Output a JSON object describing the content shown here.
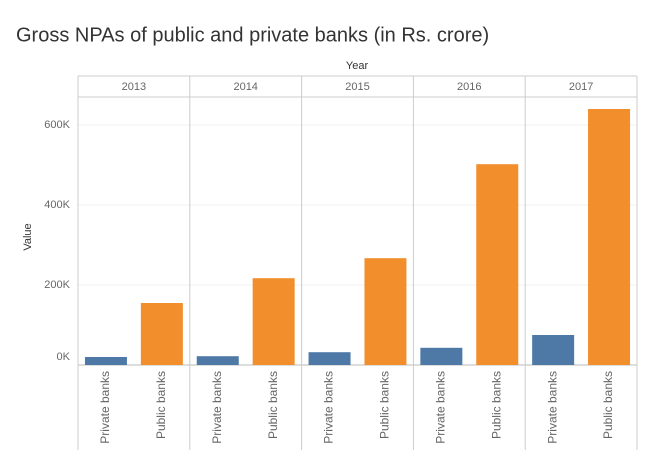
{
  "chart_data": {
    "type": "bar",
    "title": "Gross NPAs of public and private banks (in Rs. crore)",
    "column_header": "Year",
    "y_label": "Value",
    "columns": [
      "2013",
      "2014",
      "2015",
      "2016",
      "2017"
    ],
    "series": [
      {
        "name": "Private banks",
        "color": "#4e79a7",
        "values": [
          20000,
          22000,
          32000,
          43000,
          75000
        ]
      },
      {
        "name": "Public banks",
        "color": "#f28e2b",
        "values": [
          155000,
          217000,
          267000,
          502000,
          640000
        ]
      }
    ],
    "ylim": [
      0,
      670000
    ],
    "yticks": [
      {
        "value": 0,
        "label": "0K"
      },
      {
        "value": 200000,
        "label": "200K"
      },
      {
        "value": 400000,
        "label": "400K"
      },
      {
        "value": 600000,
        "label": "600K"
      }
    ],
    "grid": true
  }
}
